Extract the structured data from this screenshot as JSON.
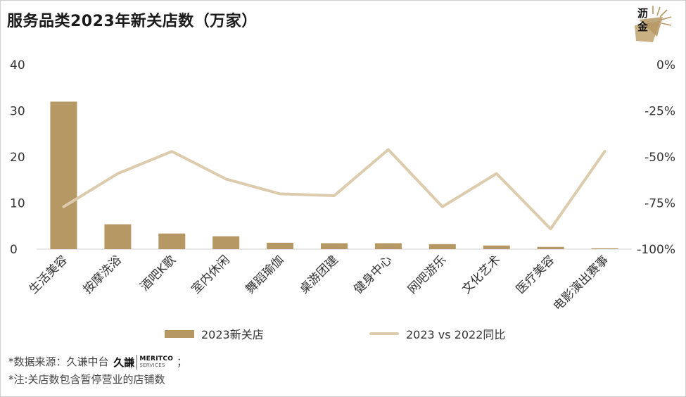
{
  "title": "服务品类2023年新关店数（万家）",
  "logo": {
    "line1": "沥",
    "line2": "金"
  },
  "colors": {
    "bar": "#b59864",
    "line": "#dccbad",
    "axis": "#cfcfcf"
  },
  "chart_data": {
    "type": "bar+line",
    "categories": [
      "生活美容",
      "按摩洗浴",
      "酒吧K歌",
      "室内休闲",
      "舞蹈瑜伽",
      "桌游团建",
      "健身中心",
      "网吧游乐",
      "文化艺术",
      "医疗美容",
      "电影演出赛事"
    ],
    "series": [
      {
        "name": "2023新关店",
        "type": "bar",
        "axis": "left",
        "values": [
          32,
          5.4,
          3.4,
          2.8,
          1.4,
          1.3,
          1.3,
          1.1,
          0.8,
          0.5,
          0.2
        ]
      },
      {
        "name": "2023 vs 2022同比",
        "type": "line",
        "axis": "right",
        "values": [
          -77,
          -59,
          -47,
          -62,
          -70,
          -71,
          -46,
          -77,
          -59,
          -89,
          -47
        ]
      }
    ],
    "left_axis": {
      "ylim": [
        0,
        40
      ],
      "ticks": [
        "0",
        "10",
        "20",
        "30",
        "40"
      ]
    },
    "right_axis": {
      "ylim": [
        -100,
        0
      ],
      "ticks": [
        "-100%",
        "-75%",
        "-50%",
        "-25%",
        "0%"
      ]
    },
    "legend_placement": "bottom",
    "grid": false
  },
  "notes": {
    "source_prefix": "*数据来源：久谦中台",
    "source_logo_cn": "久謙",
    "source_logo_en1": "MERITCO",
    "source_logo_en2": "SERVICES",
    "source_suffix": "；",
    "note2": "*注:关店数包含暂停营业的店铺数"
  }
}
